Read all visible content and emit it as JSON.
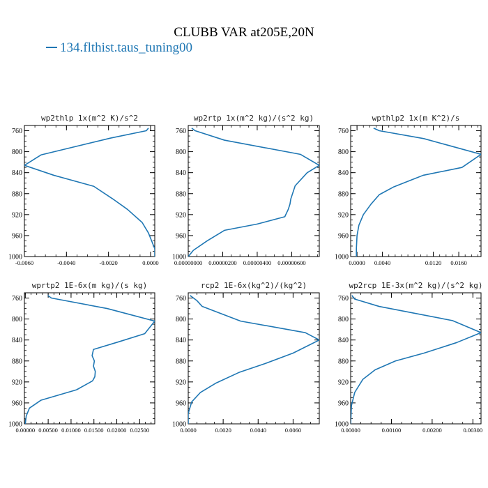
{
  "title": "CLUBB VAR at205E,20N",
  "legend": {
    "series_name": "134.flthist.taus_tuning00",
    "color": "#1f77b4"
  },
  "chart_data": [
    {
      "type": "line",
      "title": "wp2thlp  1x(m^2 K)/s^2",
      "xlim": [
        -0.006,
        0.0002
      ],
      "ylim": [
        1000,
        750
      ],
      "x_ticks": [
        -0.006,
        -0.004,
        -0.002,
        0.0
      ],
      "x_tick_labels": [
        "-0.0060",
        "-0.0040",
        "-0.0020",
        "0.0000"
      ],
      "y_ticks": [
        760,
        800,
        840,
        880,
        920,
        960,
        1000
      ],
      "y_tick_labels": [
        "760",
        "800",
        "840",
        "880",
        "920",
        "960",
        "1000"
      ],
      "series": [
        {
          "x": [
            -0.0001,
            -0.0002,
            -0.0019,
            -0.0052,
            -0.006,
            -0.0046,
            -0.0027,
            -0.0018,
            -0.0011,
            -0.0004,
            -0.0001,
            0.0002,
            0.0002
          ],
          "y": [
            755,
            760,
            774,
            806,
            826,
            845,
            866,
            890,
            910,
            935,
            955,
            985,
            1000
          ]
        }
      ]
    },
    {
      "type": "line",
      "title": "wp2rtp  1x(m^2 kg)/(s^2 kg)",
      "xlim": [
        0.0,
        7.6e-07
      ],
      "ylim": [
        1000,
        750
      ],
      "x_ticks": [
        0.0,
        2e-07,
        4e-07,
        6e-07
      ],
      "x_tick_labels": [
        "0.00000000",
        "0.00000200",
        "0.00000400",
        "0.00000600"
      ],
      "y_ticks": [
        760,
        800,
        840,
        880,
        920,
        960,
        1000
      ],
      "y_tick_labels": [
        "760",
        "800",
        "840",
        "880",
        "920",
        "960",
        "1000"
      ],
      "series": [
        {
          "x": [
            2e-08,
            4e-08,
            2.1e-07,
            6.5e-07,
            7.6e-07,
            6.9e-07,
            6.2e-07,
            6.05e-07,
            5.95e-07,
            5.9e-07,
            5.8e-07,
            5.6e-07,
            4e-07,
            2.1e-07,
            1.1e-07,
            3e-08,
            0.0
          ],
          "y": [
            755,
            760,
            778,
            805,
            826,
            840,
            865,
            880,
            890,
            900,
            910,
            924,
            938,
            950,
            970,
            988,
            1000
          ]
        }
      ]
    },
    {
      "type": "line",
      "title": "wpthlp2  1x(m K^2)/s",
      "xlim": [
        -0.001,
        0.0195
      ],
      "ylim": [
        1000,
        750
      ],
      "x_ticks": [
        0.0,
        0.004,
        0.012,
        0.016
      ],
      "x_tick_labels": [
        "0.0000",
        "0.0040",
        "0.0120",
        "0.0160"
      ],
      "y_ticks": [
        760,
        800,
        840,
        880,
        920,
        960,
        1000
      ],
      "y_tick_labels": [
        "760",
        "800",
        "840",
        "880",
        "920",
        "960",
        "1000"
      ],
      "series": [
        {
          "x": [
            0.0026,
            0.0035,
            0.0105,
            0.0195,
            0.0165,
            0.0104,
            0.0058,
            0.0035,
            0.0022,
            0.001,
            0.0003,
            0.0,
            -0.0001,
            -0.0001
          ],
          "y": [
            755,
            760,
            775,
            805,
            830,
            845,
            867,
            882,
            900,
            920,
            940,
            960,
            985,
            1000
          ]
        }
      ]
    },
    {
      "type": "line",
      "title": "wprtp2  1E-6x(m kg)/(s kg)",
      "xlim": [
        -0.0002,
        0.0283
      ],
      "ylim": [
        1000,
        750
      ],
      "x_ticks": [
        0.0,
        0.005,
        0.01,
        0.015,
        0.02,
        0.025
      ],
      "x_tick_labels": [
        "0.00000",
        "0.00500",
        "0.01000",
        "0.01500",
        "0.02000",
        "0.02500"
      ],
      "y_ticks": [
        760,
        800,
        840,
        880,
        920,
        960,
        1000
      ],
      "y_tick_labels": [
        "760",
        "800",
        "840",
        "880",
        "920",
        "960",
        "1000"
      ],
      "series": [
        {
          "x": [
            0.0049,
            0.0057,
            0.0179,
            0.0283,
            0.0261,
            0.0206,
            0.0149,
            0.0146,
            0.0151,
            0.0149,
            0.0153,
            0.0152,
            0.0147,
            0.0112,
            0.0034,
            0.0009,
            0.0002,
            0.0
          ],
          "y": [
            755,
            760,
            780,
            804,
            828,
            843,
            858,
            870,
            880,
            890,
            900,
            910,
            918,
            935,
            955,
            970,
            985,
            1000
          ]
        }
      ]
    },
    {
      "type": "line",
      "title": "rcp2  1E-6x(kg^2)/(kg^2)",
      "xlim": [
        0.0,
        0.0075
      ],
      "ylim": [
        1000,
        750
      ],
      "x_ticks": [
        0.0,
        0.002,
        0.004,
        0.006
      ],
      "x_tick_labels": [
        "0.0000",
        "0.0020",
        "0.0040",
        "0.0060"
      ],
      "y_ticks": [
        760,
        800,
        840,
        880,
        920,
        960,
        1000
      ],
      "y_tick_labels": [
        "760",
        "800",
        "840",
        "880",
        "920",
        "960",
        "1000"
      ],
      "series": [
        {
          "x": [
            0.0001,
            0.0005,
            0.0008,
            0.003,
            0.0067,
            0.0075,
            0.006,
            0.0044,
            0.0029,
            0.0016,
            0.0007,
            0.0002,
            0.0,
            0.0
          ],
          "y": [
            755,
            765,
            776,
            804,
            826,
            840,
            865,
            885,
            902,
            922,
            940,
            958,
            980,
            1000
          ]
        }
      ]
    },
    {
      "type": "line",
      "title": "wp2rcp  1E-3x(m^2 kg)/(s^2 kg)",
      "xlim": [
        0.0,
        0.0032
      ],
      "ylim": [
        1000,
        750
      ],
      "x_ticks": [
        0.0,
        0.001,
        0.002,
        0.003
      ],
      "x_tick_labels": [
        "0.00000",
        "0.00100",
        "0.00200",
        "0.00300"
      ],
      "y_ticks": [
        760,
        800,
        840,
        880,
        920,
        960,
        1000
      ],
      "y_tick_labels": [
        "760",
        "800",
        "840",
        "880",
        "920",
        "960",
        "1000"
      ],
      "series": [
        {
          "x": [
            3e-05,
            0.0001,
            0.0007,
            0.0025,
            0.0032,
            0.0026,
            0.0018,
            0.0011,
            0.0006,
            0.0003,
            0.0001,
            2e-05,
            0.0
          ],
          "y": [
            755,
            762,
            776,
            803,
            826,
            845,
            865,
            880,
            897,
            915,
            940,
            965,
            1000
          ]
        }
      ]
    }
  ]
}
